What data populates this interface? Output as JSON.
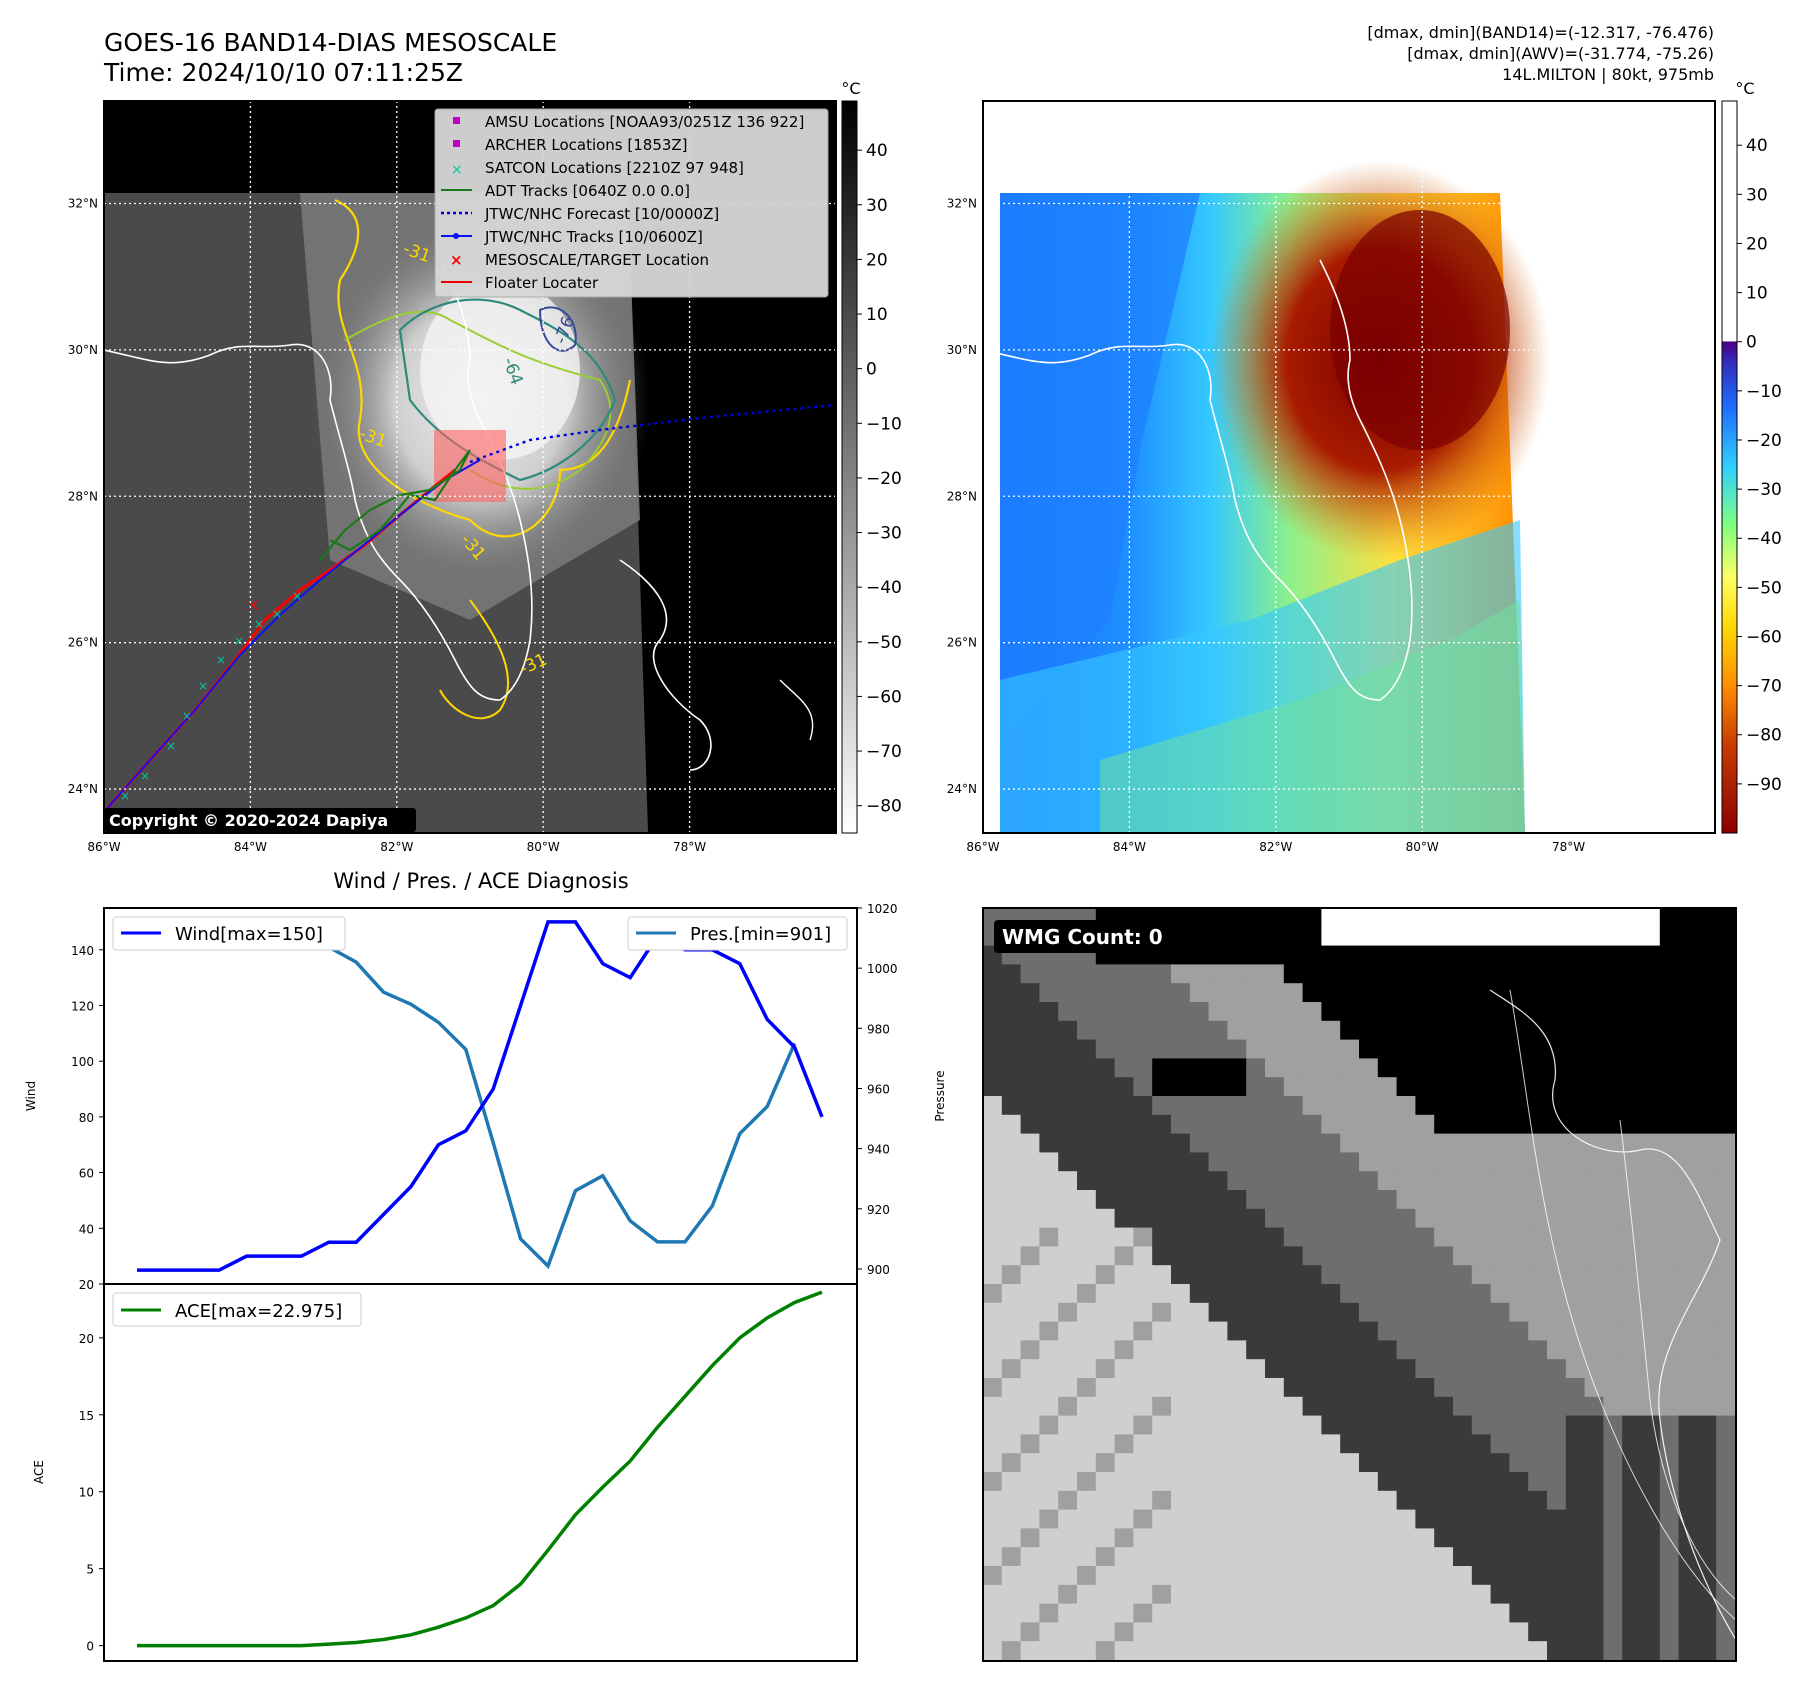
{
  "header": {
    "title": "GOES-16 BAND14-DIAS MESOSCALE",
    "time": "Time: 2024/10/10 07:11:25Z",
    "stat_band14": "[dmax, dmin](BAND14)=(-12.317, -76.476)",
    "stat_awv": "[dmax, dmin](AWV)=(-31.774, -75.26)",
    "storm": "14L.MILTON | 80kt, 975mb"
  },
  "map_axes": {
    "lon_labels": [
      "86°W",
      "84°W",
      "82°W",
      "80°W",
      "78°W"
    ],
    "lon_values": [
      -86,
      -84,
      -82,
      -80,
      -78
    ],
    "lat_labels": [
      "32°N",
      "30°N",
      "28°N",
      "26°N",
      "24°N"
    ],
    "lat_values": [
      32,
      30,
      28,
      26,
      24
    ],
    "extent": {
      "lon": [
        -86,
        -76
      ],
      "lat": [
        23.4,
        33.4
      ]
    }
  },
  "legend": {
    "items": [
      "AMSU Locations [NOAA93/0251Z 136 922]",
      "ARCHER Locations [1853Z]",
      "SATCON Locations [2210Z 97 948]",
      "ADT Tracks [0640Z 0.0 0.0]",
      "JTWC/NHC Forecast [10/0000Z]",
      "JTWC/NHC Tracks [10/0600Z]",
      "MESOSCALE/TARGET Location",
      "Floater Locater"
    ]
  },
  "colorbar_gray": {
    "unit": "°C",
    "ticks": [
      "40",
      "30",
      "20",
      "10",
      "0",
      "−10",
      "−20",
      "−30",
      "−40",
      "−50",
      "−60",
      "−70",
      "−80"
    ],
    "values": [
      40,
      30,
      20,
      10,
      0,
      -10,
      -20,
      -30,
      -40,
      -50,
      -60,
      -70,
      -80
    ],
    "range": [
      -85,
      49
    ]
  },
  "colorbar_color": {
    "unit": "°C",
    "ticks": [
      "40",
      "30",
      "20",
      "10",
      "0",
      "−10",
      "−20",
      "−30",
      "−40",
      "−50",
      "−60",
      "−70",
      "−80",
      "−90"
    ],
    "values": [
      40,
      30,
      20,
      10,
      0,
      -10,
      -20,
      -30,
      -40,
      -50,
      -60,
      -70,
      -80,
      -90
    ],
    "range": [
      -100,
      49
    ]
  },
  "contour_labels": [
    "-31",
    "-64",
    "-76",
    "-31",
    "-31",
    "-31"
  ],
  "copyright": "Copyright © 2020-2024 Dapiya",
  "wmg": {
    "label": "WMG Count: 0"
  },
  "colors": {
    "wind": "#0000ff",
    "pres": "#1f77b4",
    "ace": "#008000",
    "amsu": "#c000c0",
    "archer": "#c000c0",
    "satcon": "#00c8a0",
    "adt": "#1a7a1a",
    "forecast": "#0000dd",
    "tracks": "#1010ee",
    "target": "#ff0000",
    "floater": "#ee0000"
  },
  "chart_data": [
    {
      "type": "line",
      "title": "Wind / Pres. / ACE Diagnosis",
      "ylabel": "Wind",
      "y2label": "Pressure",
      "ylim": [
        20,
        155
      ],
      "y2lim": [
        895,
        1020
      ],
      "yticks": [
        20,
        40,
        60,
        80,
        100,
        120,
        140
      ],
      "y2ticks": [
        900,
        920,
        940,
        960,
        980,
        1000,
        1020
      ],
      "series": [
        {
          "name": "Wind",
          "legend": "Wind[max=150]",
          "axis": "left",
          "values": [
            25,
            25,
            25,
            25,
            30,
            30,
            30,
            35,
            35,
            45,
            55,
            70,
            75,
            90,
            120,
            150,
            150,
            135,
            130,
            145,
            140,
            140,
            135,
            115,
            105,
            80
          ]
        },
        {
          "name": "Pressure",
          "legend": "Pres.[min=901]",
          "axis": "right",
          "values": [
            1015,
            1015,
            1015,
            1010,
            1010,
            1008,
            1007,
            1007,
            1002,
            992,
            988,
            982,
            973,
            942,
            910,
            901,
            926,
            931,
            916,
            909,
            909,
            921,
            945,
            954,
            975,
            null
          ]
        }
      ]
    },
    {
      "type": "line",
      "ylabel": "ACE",
      "ylim": [
        -1,
        23.5
      ],
      "yticks": [
        0,
        5,
        10,
        15,
        20
      ],
      "series": [
        {
          "name": "ACE",
          "legend": "ACE[max=22.975]",
          "values": [
            0,
            0,
            0,
            0,
            0,
            0,
            0,
            0.1,
            0.2,
            0.4,
            0.7,
            1.2,
            1.8,
            2.6,
            4,
            6.2,
            8.5,
            10.3,
            12,
            14.2,
            16.2,
            18.2,
            20,
            21.3,
            22.3,
            22.975
          ]
        }
      ]
    }
  ]
}
